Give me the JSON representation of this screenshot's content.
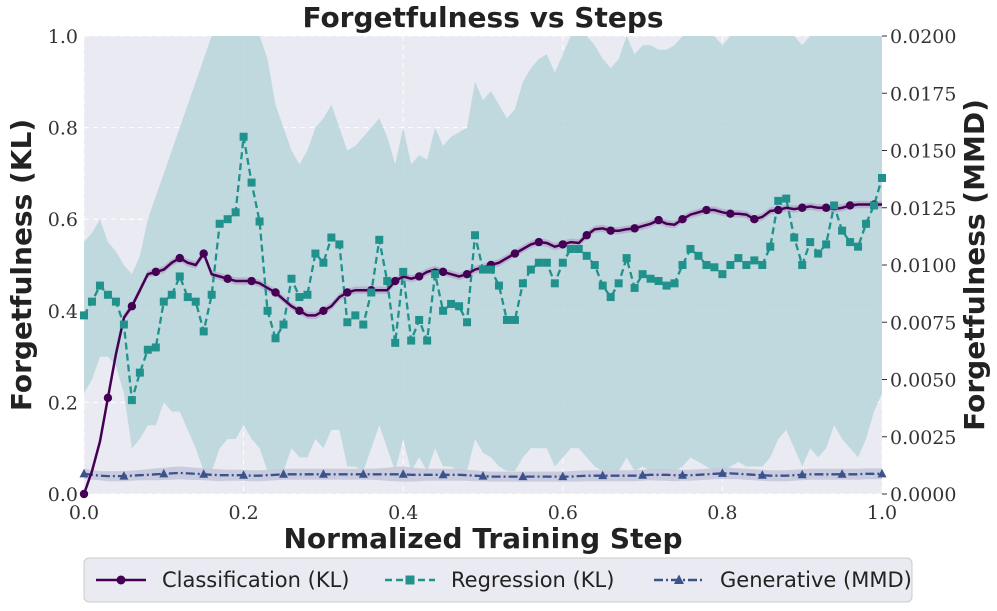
{
  "chart_data": {
    "type": "line",
    "title": "Forgetfulness vs Steps",
    "xlabel": "Normalized Training Step",
    "ylabel_left": "Forgetfulness (KL)",
    "ylabel_right": "Forgetfulness (MMD)",
    "xlim": [
      0,
      1
    ],
    "ylim_left": [
      0,
      1
    ],
    "ylim_right": [
      0,
      0.02
    ],
    "x_ticks": [
      "0.0",
      "0.2",
      "0.4",
      "0.6",
      "0.8",
      "1.0"
    ],
    "y_ticks_left": [
      "0.0",
      "0.2",
      "0.4",
      "0.6",
      "0.8",
      "1.0"
    ],
    "y_ticks_right": [
      "0.0000",
      "0.0025",
      "0.0050",
      "0.0075",
      "0.0100",
      "0.0125",
      "0.0150",
      "0.0175",
      "0.0200"
    ],
    "grid": true,
    "legend_position": "bottom",
    "colors": {
      "plot_bg": "#eaeaf2",
      "classification": "#440154",
      "regression": "#21918c",
      "generative": "#3b528b",
      "regression_band": "#b4d4d9",
      "generative_band": "#c5c9dd",
      "classification_band": "#b7a2c9"
    },
    "series": [
      {
        "name": "Classification (KL)",
        "axis": "left",
        "style": "solid",
        "marker": "circle",
        "x": [
          0.0,
          0.01,
          0.02,
          0.03,
          0.04,
          0.05,
          0.06,
          0.07,
          0.08,
          0.09,
          0.1,
          0.11,
          0.12,
          0.13,
          0.14,
          0.15,
          0.16,
          0.17,
          0.18,
          0.19,
          0.2,
          0.21,
          0.22,
          0.23,
          0.24,
          0.25,
          0.26,
          0.27,
          0.28,
          0.29,
          0.3,
          0.31,
          0.32,
          0.33,
          0.34,
          0.35,
          0.36,
          0.37,
          0.38,
          0.39,
          0.4,
          0.41,
          0.42,
          0.43,
          0.44,
          0.45,
          0.46,
          0.47,
          0.48,
          0.49,
          0.5,
          0.51,
          0.52,
          0.53,
          0.54,
          0.55,
          0.56,
          0.57,
          0.58,
          0.59,
          0.6,
          0.61,
          0.62,
          0.63,
          0.64,
          0.65,
          0.66,
          0.67,
          0.68,
          0.69,
          0.7,
          0.71,
          0.72,
          0.73,
          0.74,
          0.75,
          0.76,
          0.77,
          0.78,
          0.79,
          0.8,
          0.81,
          0.82,
          0.83,
          0.84,
          0.85,
          0.86,
          0.87,
          0.88,
          0.89,
          0.9,
          0.91,
          0.92,
          0.93,
          0.94,
          0.95,
          0.96,
          0.97,
          0.98,
          0.99,
          1.0
        ],
        "values": [
          0.0,
          0.05,
          0.115,
          0.21,
          0.305,
          0.385,
          0.41,
          0.445,
          0.48,
          0.485,
          0.49,
          0.505,
          0.515,
          0.505,
          0.5,
          0.525,
          0.48,
          0.475,
          0.47,
          0.465,
          0.465,
          0.465,
          0.46,
          0.45,
          0.44,
          0.425,
          0.41,
          0.4,
          0.39,
          0.39,
          0.4,
          0.41,
          0.43,
          0.44,
          0.445,
          0.445,
          0.445,
          0.445,
          0.445,
          0.465,
          0.475,
          0.47,
          0.475,
          0.485,
          0.49,
          0.485,
          0.48,
          0.475,
          0.48,
          0.49,
          0.495,
          0.5,
          0.505,
          0.515,
          0.525,
          0.535,
          0.545,
          0.55,
          0.548,
          0.54,
          0.545,
          0.55,
          0.548,
          0.565,
          0.578,
          0.58,
          0.575,
          0.575,
          0.578,
          0.58,
          0.585,
          0.59,
          0.598,
          0.59,
          0.588,
          0.6,
          0.61,
          0.615,
          0.62,
          0.62,
          0.615,
          0.612,
          0.612,
          0.61,
          0.6,
          0.605,
          0.618,
          0.62,
          0.625,
          0.622,
          0.625,
          0.628,
          0.625,
          0.625,
          0.622,
          0.625,
          0.63,
          0.632,
          0.632,
          0.632,
          0.632
        ]
      },
      {
        "name": "Regression (KL)",
        "axis": "left",
        "style": "dashed",
        "marker": "square",
        "x": [
          0.0,
          0.01,
          0.02,
          0.03,
          0.04,
          0.05,
          0.06,
          0.07,
          0.08,
          0.09,
          0.1,
          0.11,
          0.12,
          0.13,
          0.14,
          0.15,
          0.16,
          0.17,
          0.18,
          0.19,
          0.2,
          0.21,
          0.22,
          0.23,
          0.24,
          0.25,
          0.26,
          0.27,
          0.28,
          0.29,
          0.3,
          0.31,
          0.32,
          0.33,
          0.34,
          0.35,
          0.36,
          0.37,
          0.38,
          0.39,
          0.4,
          0.41,
          0.42,
          0.43,
          0.44,
          0.45,
          0.46,
          0.47,
          0.48,
          0.49,
          0.5,
          0.51,
          0.52,
          0.53,
          0.54,
          0.55,
          0.56,
          0.57,
          0.58,
          0.59,
          0.6,
          0.61,
          0.62,
          0.63,
          0.64,
          0.65,
          0.66,
          0.67,
          0.68,
          0.69,
          0.7,
          0.71,
          0.72,
          0.73,
          0.74,
          0.75,
          0.76,
          0.77,
          0.78,
          0.79,
          0.8,
          0.81,
          0.82,
          0.83,
          0.84,
          0.85,
          0.86,
          0.87,
          0.88,
          0.89,
          0.9,
          0.91,
          0.92,
          0.93,
          0.94,
          0.95,
          0.96,
          0.97,
          0.98,
          0.99,
          1.0
        ],
        "values": [
          0.39,
          0.42,
          0.455,
          0.435,
          0.42,
          0.37,
          0.205,
          0.265,
          0.315,
          0.32,
          0.42,
          0.435,
          0.475,
          0.43,
          0.42,
          0.355,
          0.435,
          0.59,
          0.6,
          0.615,
          0.78,
          0.68,
          0.595,
          0.4,
          0.34,
          0.37,
          0.47,
          0.43,
          0.435,
          0.525,
          0.505,
          0.56,
          0.545,
          0.375,
          0.39,
          0.37,
          0.44,
          0.555,
          0.465,
          0.33,
          0.485,
          0.335,
          0.38,
          0.335,
          0.48,
          0.4,
          0.415,
          0.41,
          0.375,
          0.565,
          0.49,
          0.49,
          0.455,
          0.38,
          0.38,
          0.46,
          0.49,
          0.505,
          0.505,
          0.46,
          0.505,
          0.535,
          0.535,
          0.52,
          0.5,
          0.455,
          0.43,
          0.46,
          0.515,
          0.45,
          0.48,
          0.47,
          0.465,
          0.455,
          0.46,
          0.5,
          0.535,
          0.52,
          0.5,
          0.495,
          0.48,
          0.5,
          0.515,
          0.5,
          0.51,
          0.5,
          0.54,
          0.64,
          0.645,
          0.56,
          0.5,
          0.55,
          0.525,
          0.545,
          0.63,
          0.575,
          0.55,
          0.54,
          0.59,
          0.63,
          0.69
        ]
      },
      {
        "name": "Generative (MMD)",
        "axis": "right",
        "style": "dashdot",
        "marker": "triangle",
        "x": [
          0.0,
          0.01,
          0.02,
          0.03,
          0.04,
          0.05,
          0.06,
          0.07,
          0.08,
          0.09,
          0.1,
          0.11,
          0.12,
          0.13,
          0.14,
          0.15,
          0.16,
          0.17,
          0.18,
          0.19,
          0.2,
          0.21,
          0.22,
          0.23,
          0.24,
          0.25,
          0.26,
          0.27,
          0.28,
          0.29,
          0.3,
          0.31,
          0.32,
          0.33,
          0.34,
          0.35,
          0.36,
          0.37,
          0.38,
          0.39,
          0.4,
          0.41,
          0.42,
          0.43,
          0.44,
          0.45,
          0.46,
          0.47,
          0.48,
          0.49,
          0.5,
          0.51,
          0.52,
          0.53,
          0.54,
          0.55,
          0.56,
          0.57,
          0.58,
          0.59,
          0.6,
          0.61,
          0.62,
          0.63,
          0.64,
          0.65,
          0.66,
          0.67,
          0.68,
          0.69,
          0.7,
          0.71,
          0.72,
          0.73,
          0.74,
          0.75,
          0.76,
          0.77,
          0.78,
          0.79,
          0.8,
          0.81,
          0.82,
          0.83,
          0.84,
          0.85,
          0.86,
          0.87,
          0.88,
          0.89,
          0.9,
          0.91,
          0.92,
          0.93,
          0.94,
          0.95,
          0.96,
          0.97,
          0.98,
          0.99,
          1.0
        ],
        "values": [
          0.00088,
          0.00084,
          0.0008,
          0.00078,
          0.00078,
          0.00078,
          0.0008,
          0.00082,
          0.00084,
          0.00086,
          0.00088,
          0.0009,
          0.00092,
          0.0009,
          0.00088,
          0.00086,
          0.00084,
          0.00082,
          0.00082,
          0.00082,
          0.00082,
          0.0008,
          0.0008,
          0.00082,
          0.00084,
          0.00086,
          0.00086,
          0.00086,
          0.00086,
          0.00086,
          0.00086,
          0.00086,
          0.00086,
          0.00086,
          0.00086,
          0.00086,
          0.00086,
          0.00086,
          0.00086,
          0.00086,
          0.00086,
          0.00084,
          0.00084,
          0.00084,
          0.00084,
          0.00084,
          0.00084,
          0.00084,
          0.00082,
          0.0008,
          0.00078,
          0.00076,
          0.00076,
          0.00076,
          0.00076,
          0.00076,
          0.00076,
          0.00076,
          0.00076,
          0.00076,
          0.00076,
          0.00076,
          0.00078,
          0.0008,
          0.0008,
          0.0008,
          0.0008,
          0.0008,
          0.0008,
          0.0008,
          0.00082,
          0.00084,
          0.00084,
          0.00084,
          0.00082,
          0.00082,
          0.00082,
          0.00084,
          0.00086,
          0.00088,
          0.0009,
          0.0009,
          0.00088,
          0.00086,
          0.00084,
          0.00082,
          0.0008,
          0.0008,
          0.0008,
          0.00082,
          0.00084,
          0.00086,
          0.00086,
          0.00086,
          0.00086,
          0.00086,
          0.00086,
          0.00086,
          0.00088,
          0.00088,
          0.00088
        ]
      }
    ],
    "bands": {
      "regression_upper": [
        0.55,
        0.57,
        0.6,
        0.55,
        0.53,
        0.5,
        0.48,
        0.52,
        0.6,
        0.65,
        0.7,
        0.75,
        0.8,
        0.85,
        0.9,
        0.95,
        1.0,
        1.0,
        1.0,
        1.0,
        1.0,
        1.0,
        1.0,
        0.95,
        0.85,
        0.8,
        0.75,
        0.72,
        0.75,
        0.8,
        0.82,
        0.85,
        0.8,
        0.75,
        0.76,
        0.78,
        0.8,
        0.82,
        0.78,
        0.72,
        0.8,
        0.72,
        0.74,
        0.73,
        0.8,
        0.76,
        0.78,
        0.79,
        0.8,
        0.9,
        0.86,
        0.88,
        0.85,
        0.82,
        0.84,
        0.9,
        0.93,
        0.95,
        0.96,
        0.92,
        0.96,
        1.0,
        1.0,
        1.0,
        0.98,
        0.95,
        0.93,
        0.95,
        1.0,
        0.96,
        0.98,
        0.98,
        0.97,
        0.97,
        0.98,
        1.0,
        1.0,
        1.0,
        1.0,
        1.0,
        0.98,
        1.0,
        1.0,
        1.0,
        1.0,
        1.0,
        1.0,
        1.0,
        1.0,
        1.0,
        0.98,
        1.0,
        1.0,
        1.0,
        1.0,
        1.0,
        1.0,
        1.0,
        1.0,
        1.0,
        1.0
      ],
      "regression_lower": [
        0.22,
        0.25,
        0.3,
        0.3,
        0.28,
        0.22,
        0.1,
        0.12,
        0.15,
        0.15,
        0.2,
        0.18,
        0.18,
        0.14,
        0.1,
        0.05,
        0.05,
        0.1,
        0.12,
        0.12,
        0.15,
        0.12,
        0.1,
        0.05,
        0.05,
        0.05,
        0.1,
        0.08,
        0.08,
        0.12,
        0.1,
        0.14,
        0.14,
        0.06,
        0.06,
        0.05,
        0.1,
        0.15,
        0.1,
        0.05,
        0.12,
        0.05,
        0.08,
        0.05,
        0.1,
        0.06,
        0.06,
        0.05,
        0.05,
        0.12,
        0.09,
        0.08,
        0.06,
        0.05,
        0.05,
        0.08,
        0.1,
        0.1,
        0.1,
        0.06,
        0.08,
        0.1,
        0.1,
        0.08,
        0.06,
        0.05,
        0.05,
        0.05,
        0.08,
        0.05,
        0.06,
        0.05,
        0.05,
        0.05,
        0.05,
        0.06,
        0.08,
        0.07,
        0.06,
        0.05,
        0.05,
        0.06,
        0.07,
        0.06,
        0.06,
        0.06,
        0.08,
        0.12,
        0.14,
        0.1,
        0.06,
        0.1,
        0.08,
        0.1,
        0.15,
        0.12,
        0.1,
        0.08,
        0.12,
        0.18,
        0.22
      ],
      "generative_upper": [
        0.0011,
        0.00105,
        0.001,
        0.001,
        0.001,
        0.001,
        0.00102,
        0.00105,
        0.00108,
        0.00112,
        0.00115,
        0.00118,
        0.0012,
        0.00118,
        0.00115,
        0.00112,
        0.0011,
        0.00108,
        0.00106,
        0.00106,
        0.00106,
        0.00104,
        0.00104,
        0.00106,
        0.00108,
        0.0011,
        0.0011,
        0.0011,
        0.0011,
        0.0011,
        0.0011,
        0.0011,
        0.0011,
        0.0011,
        0.0011,
        0.0011,
        0.0011,
        0.00112,
        0.00115,
        0.00118,
        0.0012,
        0.00116,
        0.00112,
        0.0011,
        0.0011,
        0.0011,
        0.0011,
        0.0011,
        0.00106,
        0.00104,
        0.001,
        0.00098,
        0.00098,
        0.00098,
        0.00098,
        0.00098,
        0.00098,
        0.00098,
        0.00098,
        0.00098,
        0.00098,
        0.001,
        0.00102,
        0.00104,
        0.00104,
        0.00104,
        0.00104,
        0.00104,
        0.00104,
        0.00104,
        0.00106,
        0.00108,
        0.0011,
        0.0011,
        0.00108,
        0.00106,
        0.00106,
        0.00108,
        0.0011,
        0.00112,
        0.00115,
        0.00115,
        0.00112,
        0.0011,
        0.00108,
        0.00106,
        0.00104,
        0.00104,
        0.00104,
        0.00106,
        0.00108,
        0.0011,
        0.0011,
        0.0011,
        0.0011,
        0.0011,
        0.0011,
        0.0011,
        0.00112,
        0.00112,
        0.00112
      ],
      "generative_lower": [
        0.00066,
        0.00063,
        0.0006,
        0.00056,
        0.00056,
        0.00056,
        0.00058,
        0.0006,
        0.0006,
        0.0006,
        0.00061,
        0.00062,
        0.00064,
        0.00062,
        0.00061,
        0.0006,
        0.00058,
        0.00056,
        0.00058,
        0.00058,
        0.00058,
        0.00056,
        0.00056,
        0.00058,
        0.0006,
        0.00062,
        0.00062,
        0.00062,
        0.00062,
        0.00062,
        0.00062,
        0.00062,
        0.00062,
        0.00062,
        0.00062,
        0.00062,
        0.00062,
        0.0006,
        0.00058,
        0.00056,
        0.00054,
        0.00054,
        0.00056,
        0.00058,
        0.00058,
        0.00058,
        0.00058,
        0.00058,
        0.00058,
        0.00056,
        0.00056,
        0.00054,
        0.00054,
        0.00054,
        0.00054,
        0.00054,
        0.00054,
        0.00054,
        0.00054,
        0.00054,
        0.00054,
        0.00054,
        0.00054,
        0.00056,
        0.00056,
        0.00056,
        0.00056,
        0.00056,
        0.00056,
        0.00056,
        0.00058,
        0.0006,
        0.00058,
        0.00058,
        0.00056,
        0.00058,
        0.00058,
        0.0006,
        0.00062,
        0.00064,
        0.00065,
        0.00065,
        0.00064,
        0.00062,
        0.0006,
        0.00058,
        0.00056,
        0.00056,
        0.00056,
        0.00058,
        0.0006,
        0.00062,
        0.00062,
        0.00062,
        0.00062,
        0.00062,
        0.00062,
        0.00062,
        0.00064,
        0.00064,
        0.00064
      ]
    }
  }
}
